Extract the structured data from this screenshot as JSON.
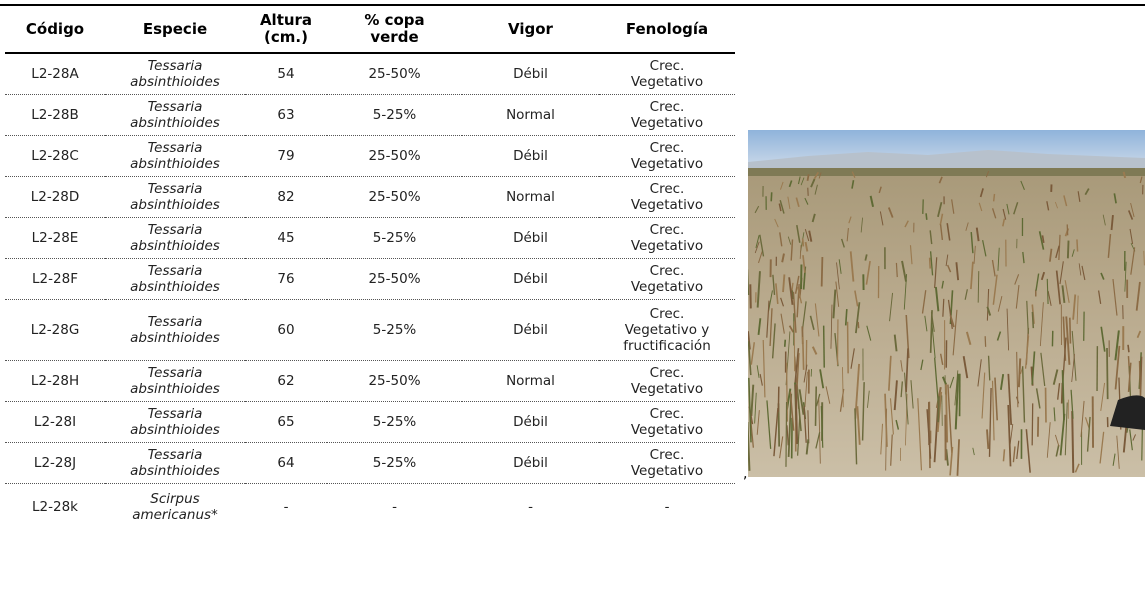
{
  "table": {
    "header": [
      "Código",
      "Especie",
      "Altura (cm.)",
      "% copa verde",
      "Vigor",
      "Fenología"
    ],
    "rows": [
      [
        "L2-28A",
        "Tessaria absinthioides",
        54,
        "25-50%",
        "Débil",
        "Crec. Vegetativo"
      ],
      [
        "L2-28B",
        "Tessaria absinthioides",
        63,
        "5-25%",
        "Normal",
        "Crec. Vegetativo"
      ],
      [
        "L2-28C",
        "Tessaria absinthioides",
        79,
        "25-50%",
        "Débil",
        "Crec. Vegetativo"
      ],
      [
        "L2-28D",
        "Tessaria absinthioides",
        82,
        "25-50%",
        "Normal",
        "Crec. Vegetativo"
      ],
      [
        "L2-28E",
        "Tessaria absinthioides",
        45,
        "5-25%",
        "Débil",
        "Crec. Vegetativo"
      ],
      [
        "L2-28F",
        "Tessaria absinthioides",
        76,
        "25-50%",
        "Débil",
        "Crec. Vegetativo"
      ],
      [
        "L2-28G",
        "Tessaria absinthioides",
        60,
        "5-25%",
        "Débil",
        "Crec. Vegetativo y fructificación"
      ],
      [
        "L2-28H",
        "Tessaria absinthioides",
        62,
        "25-50%",
        "Normal",
        "Crec. Vegetativo"
      ],
      [
        "L2-28I",
        "Tessaria absinthioides",
        65,
        "5-25%",
        "Débil",
        "Crec. Vegetativo"
      ],
      [
        "L2-28J",
        "Tessaria absinthioides",
        64,
        "5-25%",
        "Débil",
        "Crec. Vegetativo"
      ],
      [
        "L2-28k",
        "Scirpus americanus*",
        "-",
        "-",
        "-",
        "-"
      ]
    ]
  },
  "caption": ","
}
